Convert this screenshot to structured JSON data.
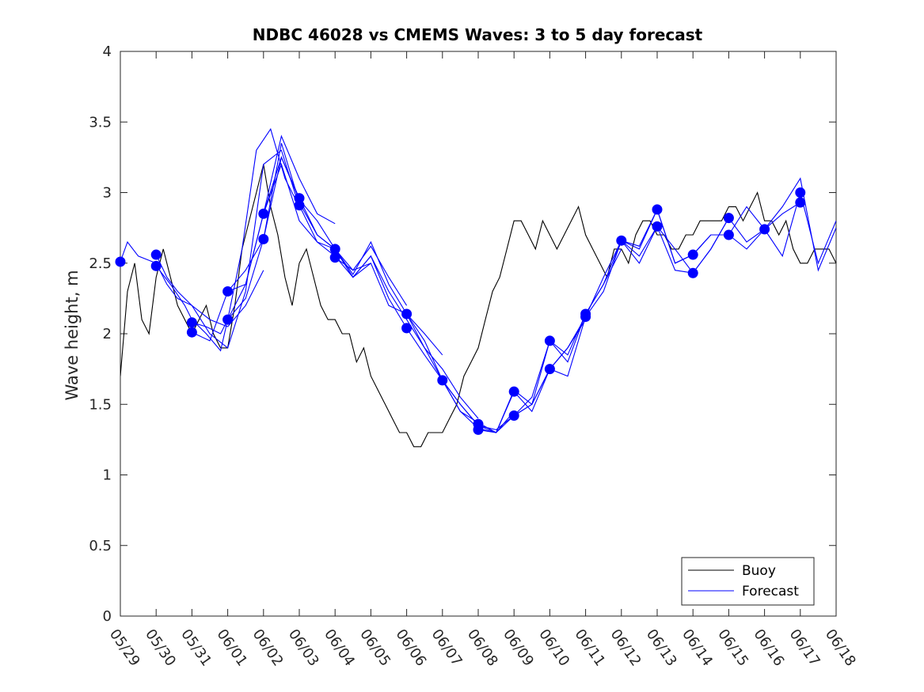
{
  "chart_data": {
    "type": "line",
    "title": "NDBC 46028 vs CMEMS Waves: 3 to 5 day forecast",
    "xlabel": "",
    "ylabel": "Wave height, m",
    "xlim": [
      "05/29",
      "06/18"
    ],
    "ylim": [
      0,
      4
    ],
    "yticks": [
      "0",
      "0.5",
      "1",
      "1.5",
      "2",
      "2.5",
      "3",
      "3.5",
      "4"
    ],
    "xticks": [
      "05/29",
      "05/30",
      "05/31",
      "06/01",
      "06/02",
      "06/03",
      "06/04",
      "06/05",
      "06/06",
      "06/07",
      "06/08",
      "06/09",
      "06/10",
      "06/11",
      "06/12",
      "06/13",
      "06/14",
      "06/15",
      "06/16",
      "06/17",
      "06/18"
    ],
    "grid": false,
    "legend": {
      "position": "bottom-right",
      "entries": [
        "Buoy",
        "Forecast"
      ]
    },
    "colors": {
      "buoy": "#000000",
      "forecast": "#0000ff"
    },
    "series": [
      {
        "name": "Buoy",
        "x_day": [
          0,
          0.2,
          0.4,
          0.6,
          0.8,
          1.0,
          1.2,
          1.4,
          1.6,
          1.8,
          2.0,
          2.2,
          2.4,
          2.6,
          2.8,
          3.0,
          3.2,
          3.4,
          3.6,
          3.8,
          4.0,
          4.2,
          4.4,
          4.6,
          4.8,
          5.0,
          5.2,
          5.4,
          5.6,
          5.8,
          6.0,
          6.2,
          6.4,
          6.6,
          6.8,
          7.0,
          7.2,
          7.4,
          7.6,
          7.8,
          8.0,
          8.2,
          8.4,
          8.6,
          8.8,
          9.0,
          9.2,
          9.4,
          9.6,
          9.8,
          10.0,
          10.2,
          10.4,
          10.6,
          10.8,
          11.0,
          11.2,
          11.4,
          11.6,
          11.8,
          12.0,
          12.2,
          12.4,
          12.6,
          12.8,
          13.0,
          13.2,
          13.4,
          13.6,
          13.8,
          14.0,
          14.2,
          14.4,
          14.6,
          14.8,
          15.0,
          15.2,
          15.4,
          15.6,
          15.8,
          16.0,
          16.2,
          16.4,
          16.6,
          16.8,
          17.0,
          17.2,
          17.4,
          17.6,
          17.8,
          18.0,
          18.2,
          18.4,
          18.6,
          18.8,
          19.0,
          19.2,
          19.4,
          19.6,
          19.8,
          20.0
        ],
        "y": [
          1.7,
          2.3,
          2.5,
          2.1,
          2.0,
          2.4,
          2.6,
          2.4,
          2.2,
          2.1,
          2.0,
          2.1,
          2.2,
          2.0,
          1.9,
          1.9,
          2.2,
          2.6,
          2.8,
          3.0,
          3.2,
          2.9,
          2.7,
          2.4,
          2.2,
          2.5,
          2.6,
          2.4,
          2.2,
          2.1,
          2.1,
          2.0,
          2.0,
          1.8,
          1.9,
          1.7,
          1.6,
          1.5,
          1.4,
          1.3,
          1.3,
          1.2,
          1.2,
          1.3,
          1.3,
          1.3,
          1.4,
          1.5,
          1.7,
          1.8,
          1.9,
          2.1,
          2.3,
          2.4,
          2.6,
          2.8,
          2.8,
          2.7,
          2.6,
          2.8,
          2.7,
          2.6,
          2.7,
          2.8,
          2.9,
          2.7,
          2.6,
          2.5,
          2.4,
          2.6,
          2.6,
          2.5,
          2.7,
          2.8,
          2.8,
          2.7,
          2.7,
          2.6,
          2.6,
          2.7,
          2.7,
          2.8,
          2.8,
          2.8,
          2.8,
          2.9,
          2.9,
          2.8,
          2.9,
          3.0,
          2.8,
          2.8,
          2.7,
          2.8,
          2.6,
          2.5,
          2.5,
          2.6,
          2.6,
          2.6,
          2.5
        ]
      },
      {
        "name": "Forecast",
        "runs": [
          {
            "x_day": [
              0.0,
              0.2,
              0.5,
              1.0,
              1.3,
              1.6,
              2.0,
              2.5,
              3.0,
              3.5,
              4.0
            ],
            "y": [
              2.51,
              2.65,
              2.55,
              2.5,
              2.35,
              2.25,
              2.2,
              2.1,
              2.05,
              2.2,
              2.45
            ]
          },
          {
            "x_day": [
              1.0,
              1.3,
              1.6,
              2.0,
              2.5,
              3.0,
              3.5,
              4.0,
              4.5,
              5.0
            ],
            "y": [
              2.56,
              2.4,
              2.3,
              2.2,
              2.0,
              1.9,
              2.3,
              3.2,
              3.3,
              2.9
            ]
          },
          {
            "x_day": [
              1.0,
              1.4,
              1.8,
              2.0,
              2.4,
              2.8,
              3.0,
              3.4,
              3.8,
              4.2,
              4.6,
              5.0
            ],
            "y": [
              2.48,
              2.35,
              2.2,
              2.1,
              2.0,
              1.88,
              2.1,
              2.6,
              3.3,
              3.45,
              3.1,
              2.9
            ]
          },
          {
            "x_day": [
              2.0,
              2.4,
              2.8,
              3.0,
              3.5,
              4.0,
              4.5,
              5.0,
              5.5,
              6.0
            ],
            "y": [
              2.08,
              2.05,
              2.0,
              2.1,
              2.35,
              2.85,
              3.4,
              3.1,
              2.85,
              2.78
            ]
          },
          {
            "x_day": [
              2.0,
              2.5,
              3.0,
              3.5,
              4.0,
              4.5,
              5.0,
              5.5,
              6.0
            ],
            "y": [
              2.01,
              1.95,
              2.3,
              2.45,
              2.67,
              3.25,
              2.95,
              2.8,
              2.6
            ]
          },
          {
            "x_day": [
              3.0,
              3.5,
              4.0,
              4.5,
              5.0,
              5.5,
              6.0,
              6.5,
              7.0
            ],
            "y": [
              2.3,
              2.35,
              2.85,
              3.2,
              2.8,
              2.65,
              2.55,
              2.4,
              2.5
            ]
          },
          {
            "x_day": [
              3.0,
              3.5,
              4.0,
              4.5,
              5.0,
              5.5,
              6.0,
              6.5,
              7.0,
              7.5,
              8.0
            ],
            "y": [
              2.1,
              2.25,
              2.67,
              3.35,
              2.93,
              2.7,
              2.6,
              2.45,
              2.62,
              2.4,
              2.2
            ]
          },
          {
            "x_day": [
              4.0,
              4.5,
              5.0,
              5.5,
              6.0,
              6.5,
              7.0,
              7.5,
              8.0,
              8.5,
              9.0
            ],
            "y": [
              2.85,
              3.25,
              2.96,
              2.7,
              2.6,
              2.42,
              2.65,
              2.35,
              2.14,
              2.0,
              1.85
            ]
          },
          {
            "x_day": [
              5.0,
              5.5,
              6.0,
              6.5,
              7.0,
              7.5,
              8.0,
              8.5,
              9.0,
              9.5,
              10.0
            ],
            "y": [
              2.91,
              2.65,
              2.6,
              2.4,
              2.55,
              2.3,
              2.1,
              1.9,
              1.75,
              1.55,
              1.4
            ]
          },
          {
            "x_day": [
              6.0,
              6.5,
              7.0,
              7.5,
              8.0,
              8.5,
              9.0,
              9.5,
              10.0,
              10.5,
              11.0
            ],
            "y": [
              2.6,
              2.4,
              2.55,
              2.25,
              2.04,
              1.85,
              1.67,
              1.5,
              1.35,
              1.3,
              1.45
            ]
          },
          {
            "x_day": [
              6.0,
              6.5,
              7.0,
              7.5,
              8.0,
              8.5,
              9.0,
              9.5,
              10.0,
              10.5,
              11.0,
              11.5,
              12.0
            ],
            "y": [
              2.54,
              2.45,
              2.5,
              2.2,
              2.14,
              1.9,
              1.67,
              1.45,
              1.37,
              1.3,
              1.42,
              1.5,
              1.75
            ]
          },
          {
            "x_day": [
              8.0,
              8.5,
              9.0,
              9.5,
              10.0,
              10.5,
              11.0,
              11.5,
              12.0,
              12.5,
              13.0
            ],
            "y": [
              2.14,
              1.95,
              1.67,
              1.45,
              1.33,
              1.3,
              1.59,
              1.45,
              1.75,
              1.9,
              2.1
            ]
          },
          {
            "x_day": [
              9.0,
              9.5,
              10.0,
              10.5,
              11.0,
              11.5,
              12.0,
              12.5,
              13.0,
              13.5,
              14.0
            ],
            "y": [
              1.67,
              1.5,
              1.35,
              1.32,
              1.42,
              1.5,
              1.95,
              1.85,
              2.14,
              2.35,
              2.6
            ]
          },
          {
            "x_day": [
              10.0,
              10.5,
              11.0,
              11.5,
              12.0,
              12.5,
              13.0,
              13.5,
              14.0,
              14.5,
              15.0
            ],
            "y": [
              1.32,
              1.3,
              1.6,
              1.5,
              1.75,
              1.7,
              2.12,
              2.3,
              2.66,
              2.5,
              2.76
            ]
          },
          {
            "x_day": [
              11.0,
              11.5,
              12.0,
              12.5,
              13.0,
              13.5,
              14.0,
              14.5,
              15.0,
              15.5,
              16.0
            ],
            "y": [
              1.42,
              1.55,
              1.95,
              1.8,
              2.14,
              2.35,
              2.66,
              2.6,
              2.88,
              2.5,
              2.56
            ]
          },
          {
            "x_day": [
              12.0,
              12.5,
              13.0,
              13.5,
              14.0,
              14.5,
              15.0,
              15.5,
              16.0,
              16.5,
              17.0
            ],
            "y": [
              1.75,
              1.9,
              2.12,
              2.4,
              2.66,
              2.55,
              2.76,
              2.45,
              2.43,
              2.6,
              2.82
            ]
          },
          {
            "x_day": [
              14.0,
              14.5,
              15.0,
              15.5,
              16.0,
              16.5,
              17.0,
              17.5,
              18.0,
              18.5,
              19.0
            ],
            "y": [
              2.66,
              2.62,
              2.88,
              2.5,
              2.56,
              2.7,
              2.7,
              2.6,
              2.74,
              2.85,
              2.93
            ]
          },
          {
            "x_day": [
              15.0,
              15.5,
              16.0,
              16.5,
              17.0,
              17.5,
              18.0,
              18.5,
              19.0,
              19.5,
              20.0
            ],
            "y": [
              2.76,
              2.6,
              2.43,
              2.6,
              2.82,
              2.65,
              2.74,
              2.55,
              3.0,
              2.5,
              2.8
            ]
          },
          {
            "x_day": [
              16.0,
              16.5,
              17.0,
              17.5,
              18.0,
              18.5,
              19.0,
              19.5,
              20.0
            ],
            "y": [
              2.56,
              2.7,
              2.7,
              2.9,
              2.74,
              2.9,
              3.1,
              2.45,
              2.75
            ]
          }
        ],
        "markers_x_day": [
          0.0,
          1.0,
          1.0,
          2.0,
          2.0,
          3.0,
          3.0,
          4.0,
          4.0,
          5.0,
          5.0,
          6.0,
          6.0,
          8.0,
          8.0,
          9.0,
          10.0,
          10.0,
          11.0,
          11.0,
          12.0,
          12.0,
          13.0,
          13.0,
          14.0,
          15.0,
          15.0,
          16.0,
          16.0,
          17.0,
          17.0,
          18.0,
          19.0,
          19.0
        ],
        "markers_y": [
          2.51,
          2.56,
          2.48,
          2.08,
          2.01,
          2.3,
          2.1,
          2.85,
          2.67,
          2.96,
          2.91,
          2.6,
          2.54,
          2.14,
          2.04,
          1.67,
          1.36,
          1.32,
          1.59,
          1.42,
          1.95,
          1.75,
          2.14,
          2.12,
          2.66,
          2.88,
          2.76,
          2.56,
          2.43,
          2.82,
          2.7,
          2.74,
          3.0,
          2.93
        ]
      }
    ]
  }
}
